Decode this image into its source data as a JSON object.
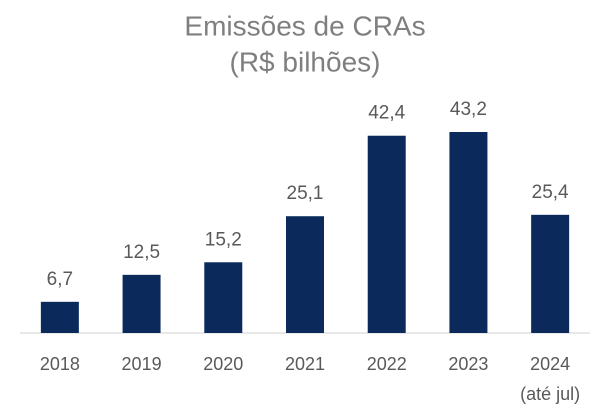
{
  "chart_data": {
    "type": "bar",
    "title": [
      "Emissões de CRAs",
      "(R$ bilhões)"
    ],
    "categories": [
      "2018",
      "2019",
      "2020",
      "2021",
      "2022",
      "2023",
      [
        "2024",
        "(até jul)"
      ]
    ],
    "values": [
      6.7,
      12.5,
      15.2,
      25.1,
      42.4,
      43.2,
      25.4
    ],
    "value_labels": [
      "6,7",
      "12,5",
      "15,2",
      "25,1",
      "42,4",
      "43,2",
      "25,4"
    ],
    "color": "#0b2a5b"
  }
}
